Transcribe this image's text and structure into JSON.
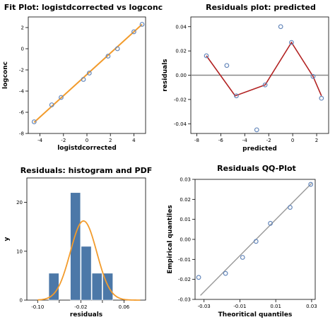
{
  "chart_data": [
    {
      "type": "scatter",
      "title": "Fit Plot: logistdcorrected vs logconc",
      "xlabel": "logistdcorrected",
      "ylabel": "logconc",
      "xlim": [
        -5,
        5
      ],
      "ylim": [
        -8,
        3
      ],
      "xticks": [
        "-4",
        "-2",
        "0",
        "2",
        "4"
      ],
      "yticks": [
        "-8",
        "-6",
        "-4",
        "-2",
        "0",
        "2"
      ],
      "points": [
        {
          "x": -4.5,
          "y": -6.9
        },
        {
          "x": -3.0,
          "y": -5.3
        },
        {
          "x": -2.2,
          "y": -4.6
        },
        {
          "x": -0.3,
          "y": -2.9
        },
        {
          "x": 0.2,
          "y": -2.3
        },
        {
          "x": 1.8,
          "y": -0.7
        },
        {
          "x": 2.6,
          "y": 0.0
        },
        {
          "x": 4.0,
          "y": 1.6
        },
        {
          "x": 4.7,
          "y": 2.3
        }
      ],
      "fit_line": {
        "x": [
          -4.5,
          4.7
        ],
        "y": [
          -6.95,
          2.3
        ]
      },
      "colors": {
        "points": "#6688bb",
        "fit": "#f29b2c"
      },
      "grid": false
    },
    {
      "type": "scatter",
      "title": "Residuals plot: predicted",
      "xlabel": "predicted",
      "ylabel": "residuals",
      "xlim": [
        -8.5,
        3
      ],
      "ylim": [
        -0.048,
        0.048
      ],
      "xticks": [
        "-8",
        "-6",
        "-4",
        "-2",
        "0",
        "2"
      ],
      "yticks": [
        "-0.04",
        "-0.02",
        "0.00",
        "0.02",
        "0.04"
      ],
      "points": [
        {
          "x": -7.2,
          "y": 0.016
        },
        {
          "x": -5.5,
          "y": 0.008
        },
        {
          "x": -4.7,
          "y": -0.017
        },
        {
          "x": -3.0,
          "y": -0.045
        },
        {
          "x": -2.3,
          "y": -0.008
        },
        {
          "x": -1.0,
          "y": 0.04
        },
        {
          "x": -0.1,
          "y": 0.027
        },
        {
          "x": 1.7,
          "y": -0.001
        },
        {
          "x": 2.4,
          "y": -0.019
        }
      ],
      "smooth_line": {
        "x": [
          -7.2,
          -4.8,
          -2.3,
          -0.1,
          1.7,
          2.4
        ],
        "y": [
          0.016,
          -0.017,
          -0.008,
          0.027,
          -0.001,
          -0.017
        ]
      },
      "zero_line": 0,
      "colors": {
        "points": "#6688bb",
        "smooth": "#b22222",
        "zero": "#888888"
      },
      "grid": false
    },
    {
      "type": "bar",
      "title": "Residuals: histogram and PDF",
      "xlabel": "residuals",
      "ylabel": "y",
      "xlim": [
        -0.12,
        0.1
      ],
      "ylim": [
        0,
        25
      ],
      "xticks": [
        "-0.10",
        "-0.02",
        "0.06"
      ],
      "xticks_minor": [
        -0.06,
        0.02
      ],
      "yticks": [
        "0",
        "10",
        "20"
      ],
      "bins": [
        {
          "x0": -0.08,
          "x1": -0.06,
          "count": 5.5
        },
        {
          "x0": -0.04,
          "x1": -0.02,
          "count": 22
        },
        {
          "x0": -0.02,
          "x1": 0.0,
          "count": 11
        },
        {
          "x0": 0.0,
          "x1": 0.02,
          "count": 5.5
        },
        {
          "x0": 0.02,
          "x1": 0.04,
          "count": 5.5
        }
      ],
      "pdf": {
        "mean": -0.015,
        "sd": 0.0245,
        "peak": 16.2
      },
      "colors": {
        "bars": "#4c78a8",
        "pdf": "#f29b2c"
      },
      "grid": false
    },
    {
      "type": "scatter",
      "title": "Residuals QQ-Plot",
      "xlabel": "Theoritical quantiles",
      "ylabel": "Empirical quantiles",
      "xlim": [
        -0.035,
        0.032
      ],
      "ylim": [
        -0.03,
        0.03
      ],
      "xticks": [
        "-0.03",
        "-0.01",
        "0.01",
        "0.03"
      ],
      "yticks": [
        "-0.03",
        "-0.02",
        "-0.01",
        "0.00",
        "0.01",
        "0.02",
        "0.03"
      ],
      "points": [
        {
          "x": -0.033,
          "y": -0.019
        },
        {
          "x": -0.018,
          "y": -0.017
        },
        {
          "x": -0.0085,
          "y": -0.009
        },
        {
          "x": -0.001,
          "y": -0.001
        },
        {
          "x": 0.007,
          "y": 0.008
        },
        {
          "x": 0.018,
          "y": 0.016
        },
        {
          "x": 0.0295,
          "y": 0.0275
        }
      ],
      "ref_line": {
        "x": [
          -0.032,
          0.03
        ],
        "y": [
          -0.028,
          0.028
        ]
      },
      "colors": {
        "points": "#6688bb",
        "ref": "#999999"
      },
      "grid": false
    }
  ]
}
